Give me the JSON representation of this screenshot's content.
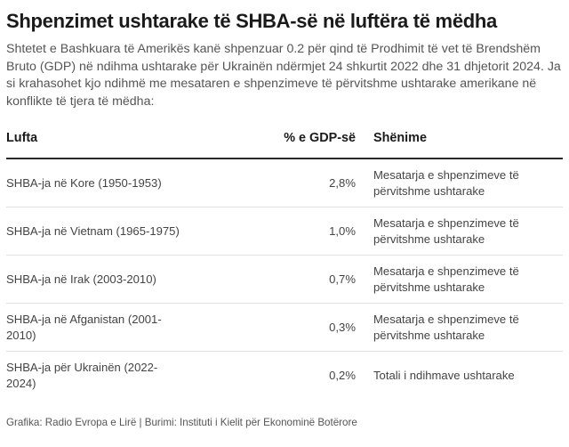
{
  "title": "Shpenzimet ushtarake të SHBA-së në luftëra të mëdha",
  "intro": "Shtetet e Bashkuara të Amerikës kanë shpenzuar 0.2 për qind të Prodhimit të vet të Brendshëm Bruto (GDP) në ndihma ushtarake për Ukrainën ndërmjet 24 shkurtit 2022 dhe 31 dhjetorit 2024. Ja si krahasohet kjo ndihmë me mesataren e shpenzimeve të përvitshme ushtarake amerikane në konflikte të tjera të mëdha:",
  "chart_data": {
    "type": "table",
    "columns": [
      "Lufta",
      "% e GDP-së",
      "Shënime"
    ],
    "rows": [
      {
        "war": "SHBA-ja në Kore (1950-1953)",
        "gdp_pct": "2,8%",
        "note": "Mesatarja e shpenzimeve të përvitshme ushtarake"
      },
      {
        "war": "SHBA-ja në Vietnam (1965-1975)",
        "gdp_pct": "1,0%",
        "note": "Mesatarja e shpenzimeve të përvitshme ushtarake"
      },
      {
        "war": "SHBA-ja në Irak (2003-2010)",
        "gdp_pct": "0,7%",
        "note": "Mesatarja e shpenzimeve të përvitshme ushtarake"
      },
      {
        "war": "SHBA-ja në Afganistan (2001-2010)",
        "gdp_pct": "0,3%",
        "note": "Mesatarja e shpenzimeve të përvitshme ushtarake"
      },
      {
        "war": "SHBA-ja për Ukrainën (2022-2024)",
        "gdp_pct": "0,2%",
        "note": "Totali i ndihmave ushtarake"
      }
    ],
    "values": [
      2.8,
      1.0,
      0.7,
      0.3,
      0.2
    ],
    "unit": "% e GDP-së"
  },
  "footer": "Grafika: Radio Evropa e Lirë | Burimi: Instituti i Kielit për Ekonominë Botërore"
}
